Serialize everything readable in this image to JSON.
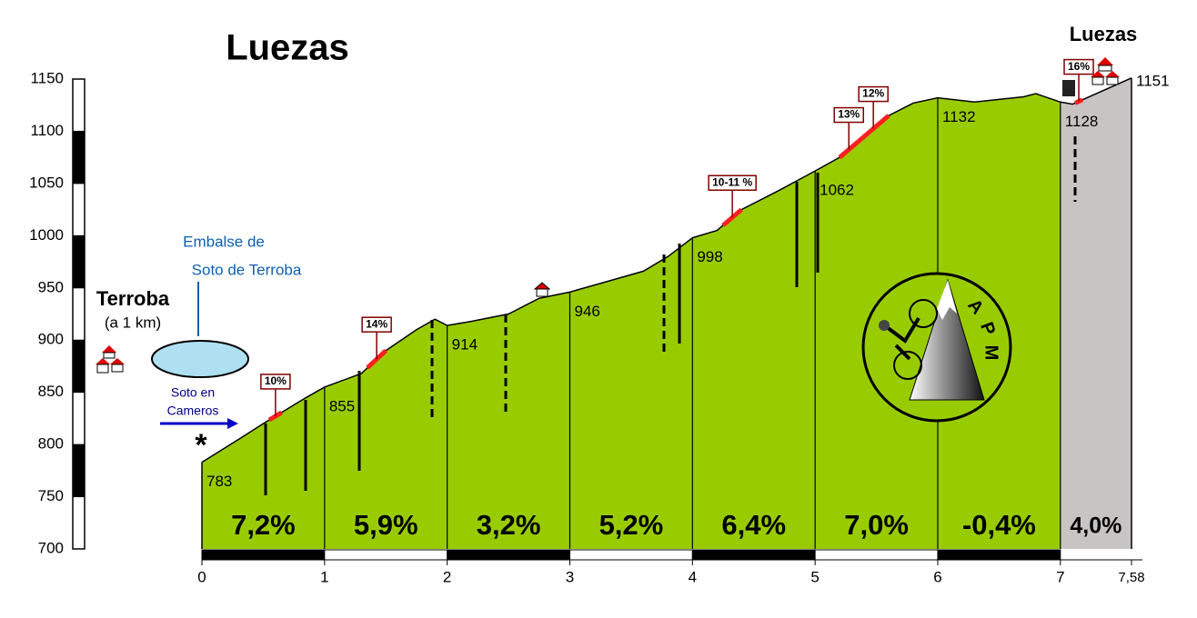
{
  "chart_data": {
    "type": "area",
    "title": "Luezas",
    "summit_label": "Luezas",
    "x": [
      0,
      0.3,
      0.5,
      0.85,
      1,
      1.3,
      1.5,
      1.75,
      1.9,
      2,
      2.2,
      2.5,
      2.75,
      3,
      3.3,
      3.6,
      3.8,
      4,
      4.2,
      4.4,
      4.7,
      5,
      5.2,
      5.35,
      5.6,
      5.8,
      6,
      6.3,
      6.7,
      6.8,
      7,
      7.1,
      7.58
    ],
    "values": [
      783,
      805,
      820,
      845,
      855,
      868,
      890,
      910,
      920,
      914,
      918,
      925,
      940,
      946,
      956,
      966,
      980,
      998,
      1005,
      1025,
      1043,
      1062,
      1075,
      1090,
      1115,
      1127,
      1132,
      1128,
      1133,
      1136,
      1128,
      1126,
      1151
    ],
    "km_points": {
      "x": [
        0,
        1,
        2,
        3,
        4,
        5,
        6,
        7,
        7.58
      ],
      "values": [
        783,
        855,
        914,
        946,
        998,
        1062,
        1132,
        1128,
        1151
      ]
    },
    "segment_labels": [
      "7,2%",
      "5,9%",
      "3,2%",
      "5,2%",
      "6,4%",
      "7,0%",
      "-0,4%",
      "4,0%"
    ],
    "segment_colors": [
      "#99cc00",
      "#99cc00",
      "#99cc00",
      "#99cc00",
      "#99cc00",
      "#99cc00",
      "#99cc00",
      "#c8c4c4"
    ],
    "ramps": [
      {
        "label": "10%",
        "x": [
          0.55,
          0.65
        ]
      },
      {
        "label": "14%",
        "x": [
          1.35,
          1.5
        ]
      },
      {
        "label": "10-11 %",
        "x": [
          4.25,
          4.4
        ]
      },
      {
        "label": "13%",
        "x": [
          5.2,
          5.35
        ]
      },
      {
        "label": "12%",
        "x": [
          5.35,
          5.6
        ]
      },
      {
        "label": "16%",
        "x": [
          7.12,
          7.18
        ]
      }
    ],
    "xlim": [
      0,
      7.58
    ],
    "xticks": [
      0,
      1,
      2,
      3,
      4,
      5,
      6,
      7,
      {
        "value": 7.58,
        "label": "7,58"
      }
    ],
    "ylim": [
      700,
      1150
    ],
    "yticks": [
      700,
      750,
      800,
      850,
      900,
      950,
      1000,
      1050,
      1100,
      1150
    ],
    "annotations": {
      "start_town": "Terroba",
      "start_town_note": "(a 1 km)",
      "reservoir": [
        "Embalse de",
        "Soto de Terroba"
      ],
      "direction": [
        "Soto en",
        "Cameros"
      ],
      "start_mark": "*",
      "logo": [
        "A",
        "P",
        "M"
      ]
    }
  }
}
